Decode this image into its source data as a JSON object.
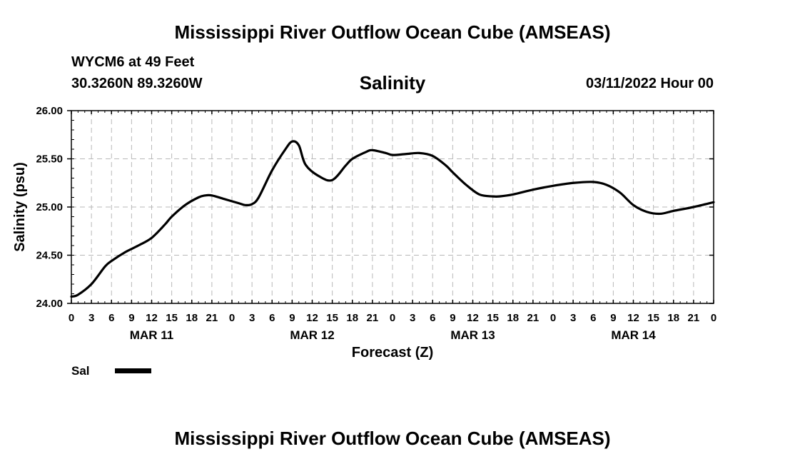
{
  "header": {
    "title": "Mississippi River Outflow Ocean Cube (AMSEAS)",
    "station": "WYCM6 at 49 Feet",
    "coordinates": "30.3260N  89.3260W",
    "subtitle": "Salinity",
    "issued": "03/11/2022 Hour 00"
  },
  "footer": {
    "title": "Mississippi River Outflow Ocean Cube (AMSEAS)"
  },
  "chart_data": {
    "type": "line",
    "title": "Salinity",
    "xlabel": "Forecast (Z)",
    "ylabel": "Salinity (psu)",
    "ylim": [
      24.0,
      26.0
    ],
    "xlim_hours": [
      0,
      96
    ],
    "y_ticks": [
      "24.00",
      "24.50",
      "25.00",
      "25.50",
      "26.00"
    ],
    "y_tick_values": [
      24.0,
      24.5,
      25.0,
      25.5,
      26.0
    ],
    "x_ticks_hours": [
      0,
      3,
      6,
      9,
      12,
      15,
      18,
      21,
      24,
      27,
      30,
      33,
      36,
      39,
      42,
      45,
      48,
      51,
      54,
      57,
      60,
      63,
      66,
      69,
      72,
      75,
      78,
      81,
      84,
      87,
      90,
      93,
      96
    ],
    "x_tick_labels": [
      "0",
      "3",
      "6",
      "9",
      "12",
      "15",
      "18",
      "21",
      "0",
      "3",
      "6",
      "9",
      "12",
      "15",
      "18",
      "21",
      "0",
      "3",
      "6",
      "9",
      "12",
      "15",
      "18",
      "21",
      "0",
      "3",
      "6",
      "9",
      "12",
      "15",
      "18",
      "21",
      "0"
    ],
    "date_labels": [
      {
        "label": "MAR 11",
        "hour": 12
      },
      {
        "label": "MAR 12",
        "hour": 36
      },
      {
        "label": "MAR 13",
        "hour": 60
      },
      {
        "label": "MAR 14",
        "hour": 84
      }
    ],
    "grid": true,
    "legend_position": "bottom-left",
    "series": [
      {
        "name": "Sal",
        "color": "#000000",
        "x_hours": [
          0,
          1,
          3,
          5,
          6,
          8,
          10,
          12,
          14,
          15,
          17,
          19,
          20,
          21,
          23,
          25,
          26,
          27,
          28,
          30,
          32,
          33,
          34,
          35,
          37,
          39,
          41,
          42,
          44,
          45,
          47,
          48,
          50,
          52,
          54,
          56,
          57,
          59,
          61,
          63,
          64,
          66,
          69,
          72,
          75,
          78,
          80,
          82,
          84,
          86,
          88,
          90,
          93,
          96
        ],
        "values": [
          24.07,
          24.09,
          24.2,
          24.38,
          24.44,
          24.53,
          24.6,
          24.68,
          24.82,
          24.9,
          25.02,
          25.1,
          25.12,
          25.12,
          25.08,
          25.04,
          25.02,
          25.03,
          25.1,
          25.38,
          25.6,
          25.68,
          25.64,
          25.44,
          25.32,
          25.28,
          25.43,
          25.5,
          25.57,
          25.59,
          25.56,
          25.54,
          25.55,
          25.56,
          25.53,
          25.43,
          25.36,
          25.23,
          25.13,
          25.11,
          25.11,
          25.13,
          25.18,
          25.22,
          25.25,
          25.26,
          25.23,
          25.15,
          25.02,
          24.95,
          24.93,
          24.96,
          25.0,
          25.05
        ]
      }
    ]
  }
}
